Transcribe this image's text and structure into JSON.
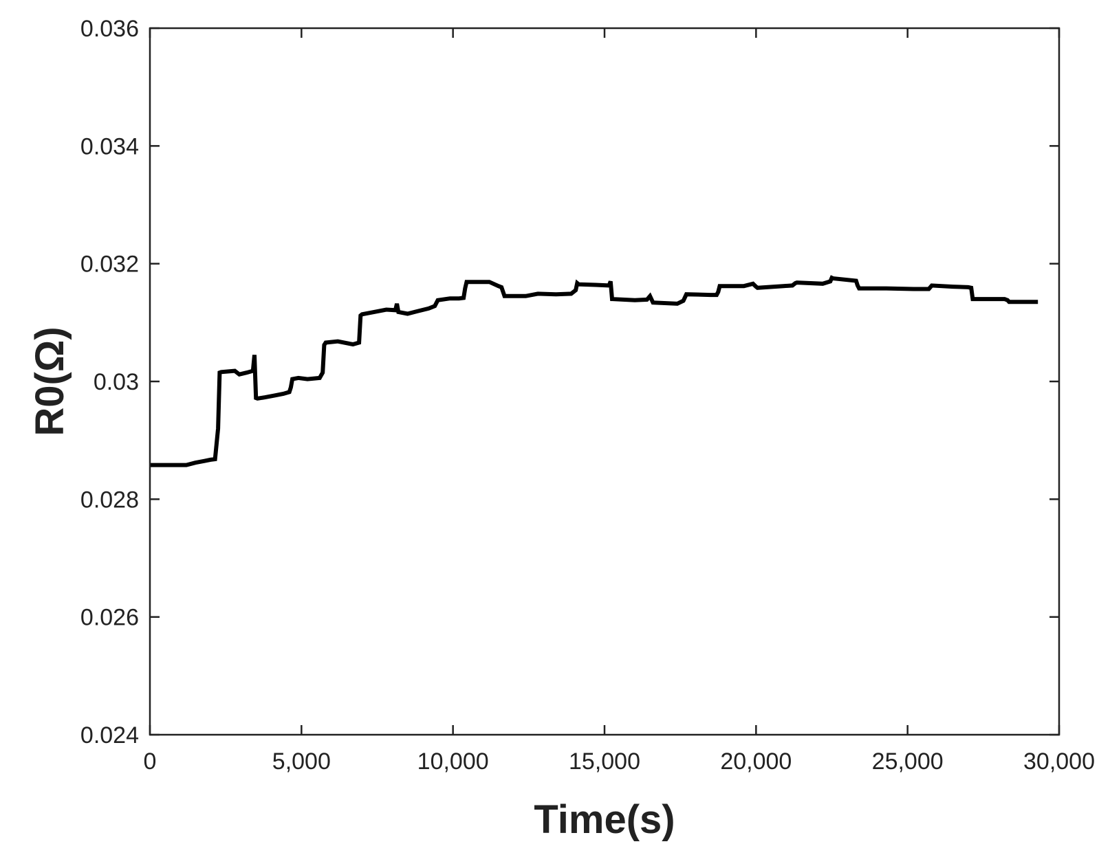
{
  "chart_data": {
    "type": "line",
    "title": "",
    "xlabel": "Time(s)",
    "ylabel": "R0(Ω)",
    "xlim": [
      0,
      30000
    ],
    "ylim": [
      0.024,
      0.036
    ],
    "xticks": [
      0,
      5000,
      10000,
      15000,
      20000,
      25000,
      30000
    ],
    "xtick_labels": [
      "0",
      "5,000",
      "10,000",
      "15,000",
      "20,000",
      "25,000",
      "30,000"
    ],
    "yticks": [
      0.024,
      0.026,
      0.028,
      0.03,
      0.032,
      0.034,
      0.036
    ],
    "ytick_labels": [
      "0.024",
      "0.026",
      "0.028",
      "0.03",
      "0.032",
      "0.034",
      "0.036"
    ],
    "grid": false,
    "legend": "none",
    "line_color": "#000000",
    "series": [
      {
        "x": [
          0,
          1200,
          1500,
          1800,
          2000,
          2150,
          2250,
          2300,
          2350,
          2800,
          2950,
          3200,
          3400,
          3450,
          3500,
          3550,
          3800,
          4100,
          4400,
          4600,
          4650,
          4700,
          4900,
          5200,
          5600,
          5700,
          5750,
          5800,
          6200,
          6600,
          6700,
          6900,
          6950,
          7000,
          7400,
          7800,
          8100,
          8150,
          8200,
          8500,
          8800,
          9200,
          9400,
          9500,
          9900,
          10200,
          10350,
          10400,
          10450,
          11200,
          11500,
          11600,
          11700,
          12400,
          12800,
          13400,
          13900,
          14050,
          14100,
          14150,
          14700,
          15150,
          15200,
          15250,
          16000,
          16400,
          16500,
          16600,
          17400,
          17600,
          17700,
          18500,
          18700,
          18750,
          18800,
          19600,
          19900,
          20000,
          20050,
          20900,
          21200,
          21300,
          21350,
          22200,
          22450,
          22500,
          22550,
          23300,
          23350,
          23400,
          24300,
          25200,
          25700,
          25800,
          26500,
          27000,
          27100,
          27150,
          28200,
          28300,
          28350,
          29300
        ],
        "y": [
          0.02858,
          0.02858,
          0.02862,
          0.02865,
          0.02867,
          0.02868,
          0.0292,
          0.03015,
          0.03016,
          0.03018,
          0.03012,
          0.03015,
          0.03018,
          0.03045,
          0.02972,
          0.02971,
          0.02973,
          0.02976,
          0.02979,
          0.02982,
          0.0299,
          0.03004,
          0.03006,
          0.03004,
          0.03006,
          0.03015,
          0.03062,
          0.03066,
          0.03068,
          0.03064,
          0.03063,
          0.03066,
          0.03112,
          0.03114,
          0.03118,
          0.03122,
          0.03121,
          0.03132,
          0.03118,
          0.03115,
          0.03119,
          0.03124,
          0.03128,
          0.03138,
          0.03141,
          0.03141,
          0.03142,
          0.03158,
          0.03169,
          0.03169,
          0.03162,
          0.0316,
          0.03145,
          0.03145,
          0.03149,
          0.03148,
          0.03149,
          0.03155,
          0.03167,
          0.03165,
          0.03164,
          0.03163,
          0.0317,
          0.0314,
          0.03138,
          0.03139,
          0.03145,
          0.03134,
          0.03132,
          0.03137,
          0.03148,
          0.03147,
          0.03147,
          0.03152,
          0.03162,
          0.03162,
          0.03166,
          0.03161,
          0.03159,
          0.03162,
          0.03163,
          0.03167,
          0.03168,
          0.03166,
          0.0317,
          0.03176,
          0.03175,
          0.03171,
          0.03163,
          0.03158,
          0.03158,
          0.03157,
          0.03157,
          0.03163,
          0.03161,
          0.0316,
          0.03159,
          0.0314,
          0.0314,
          0.03138,
          0.03135,
          0.03135
        ]
      }
    ]
  }
}
